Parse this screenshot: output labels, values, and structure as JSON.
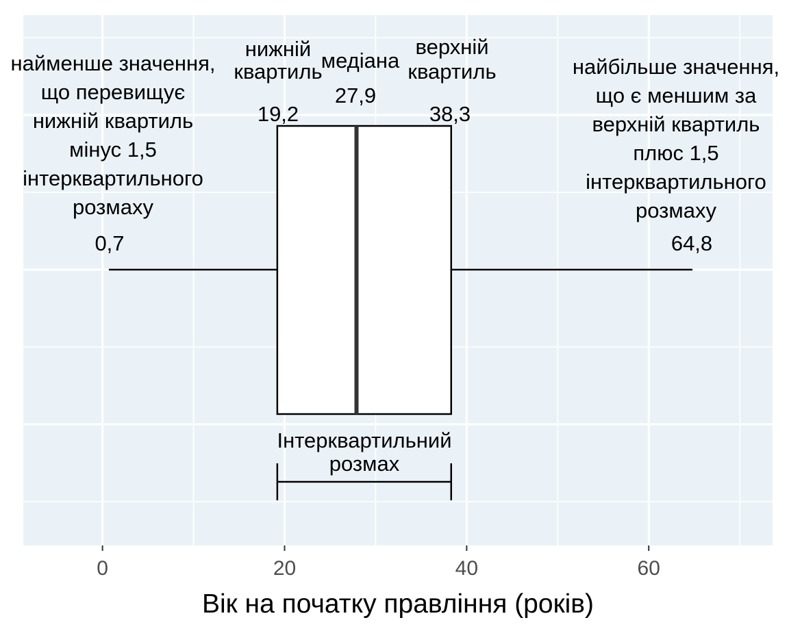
{
  "chart_data": {
    "type": "boxplot",
    "title": "",
    "xlabel": "Вік на початку правління (років)",
    "ylabel": "",
    "xlim": [
      -8.7,
      73.6
    ],
    "x_ticks": [
      0,
      20,
      40,
      60
    ],
    "x_tick_labels": [
      "0",
      "20",
      "40",
      "60"
    ],
    "grid": true,
    "legend": "none",
    "box": {
      "whisker_low": 0.7,
      "q1": 19.2,
      "median": 27.9,
      "q3": 38.3,
      "whisker_high": 64.8
    },
    "value_labels": {
      "whisker_low": "0,7",
      "q1": "19,2",
      "median": "27,9",
      "q3": "38,3",
      "whisker_high": "64,8"
    },
    "annotations": {
      "whisker_low": [
        "найменше значення,",
        "що перевищує",
        "нижній квартиль",
        "мінус 1,5",
        "інтерквартильного",
        "розмаху"
      ],
      "q1": [
        "нижній",
        "квартиль"
      ],
      "median": [
        "медіана"
      ],
      "q3": [
        "верхній",
        "квартиль"
      ],
      "whisker_high": [
        "найбільше значення,",
        "що є меншим за",
        "верхній квартиль",
        "плюс 1,5",
        "інтерквартильного",
        "розмаху"
      ],
      "iqr": [
        "Інтерквартильний",
        "розмах"
      ]
    },
    "colors": {
      "panel": "#ebf2f7",
      "grid": "#ffffff",
      "box_fill": "#ffffff",
      "line": "#000000",
      "median": "#333333",
      "tick_text": "#4d4d4d"
    }
  }
}
